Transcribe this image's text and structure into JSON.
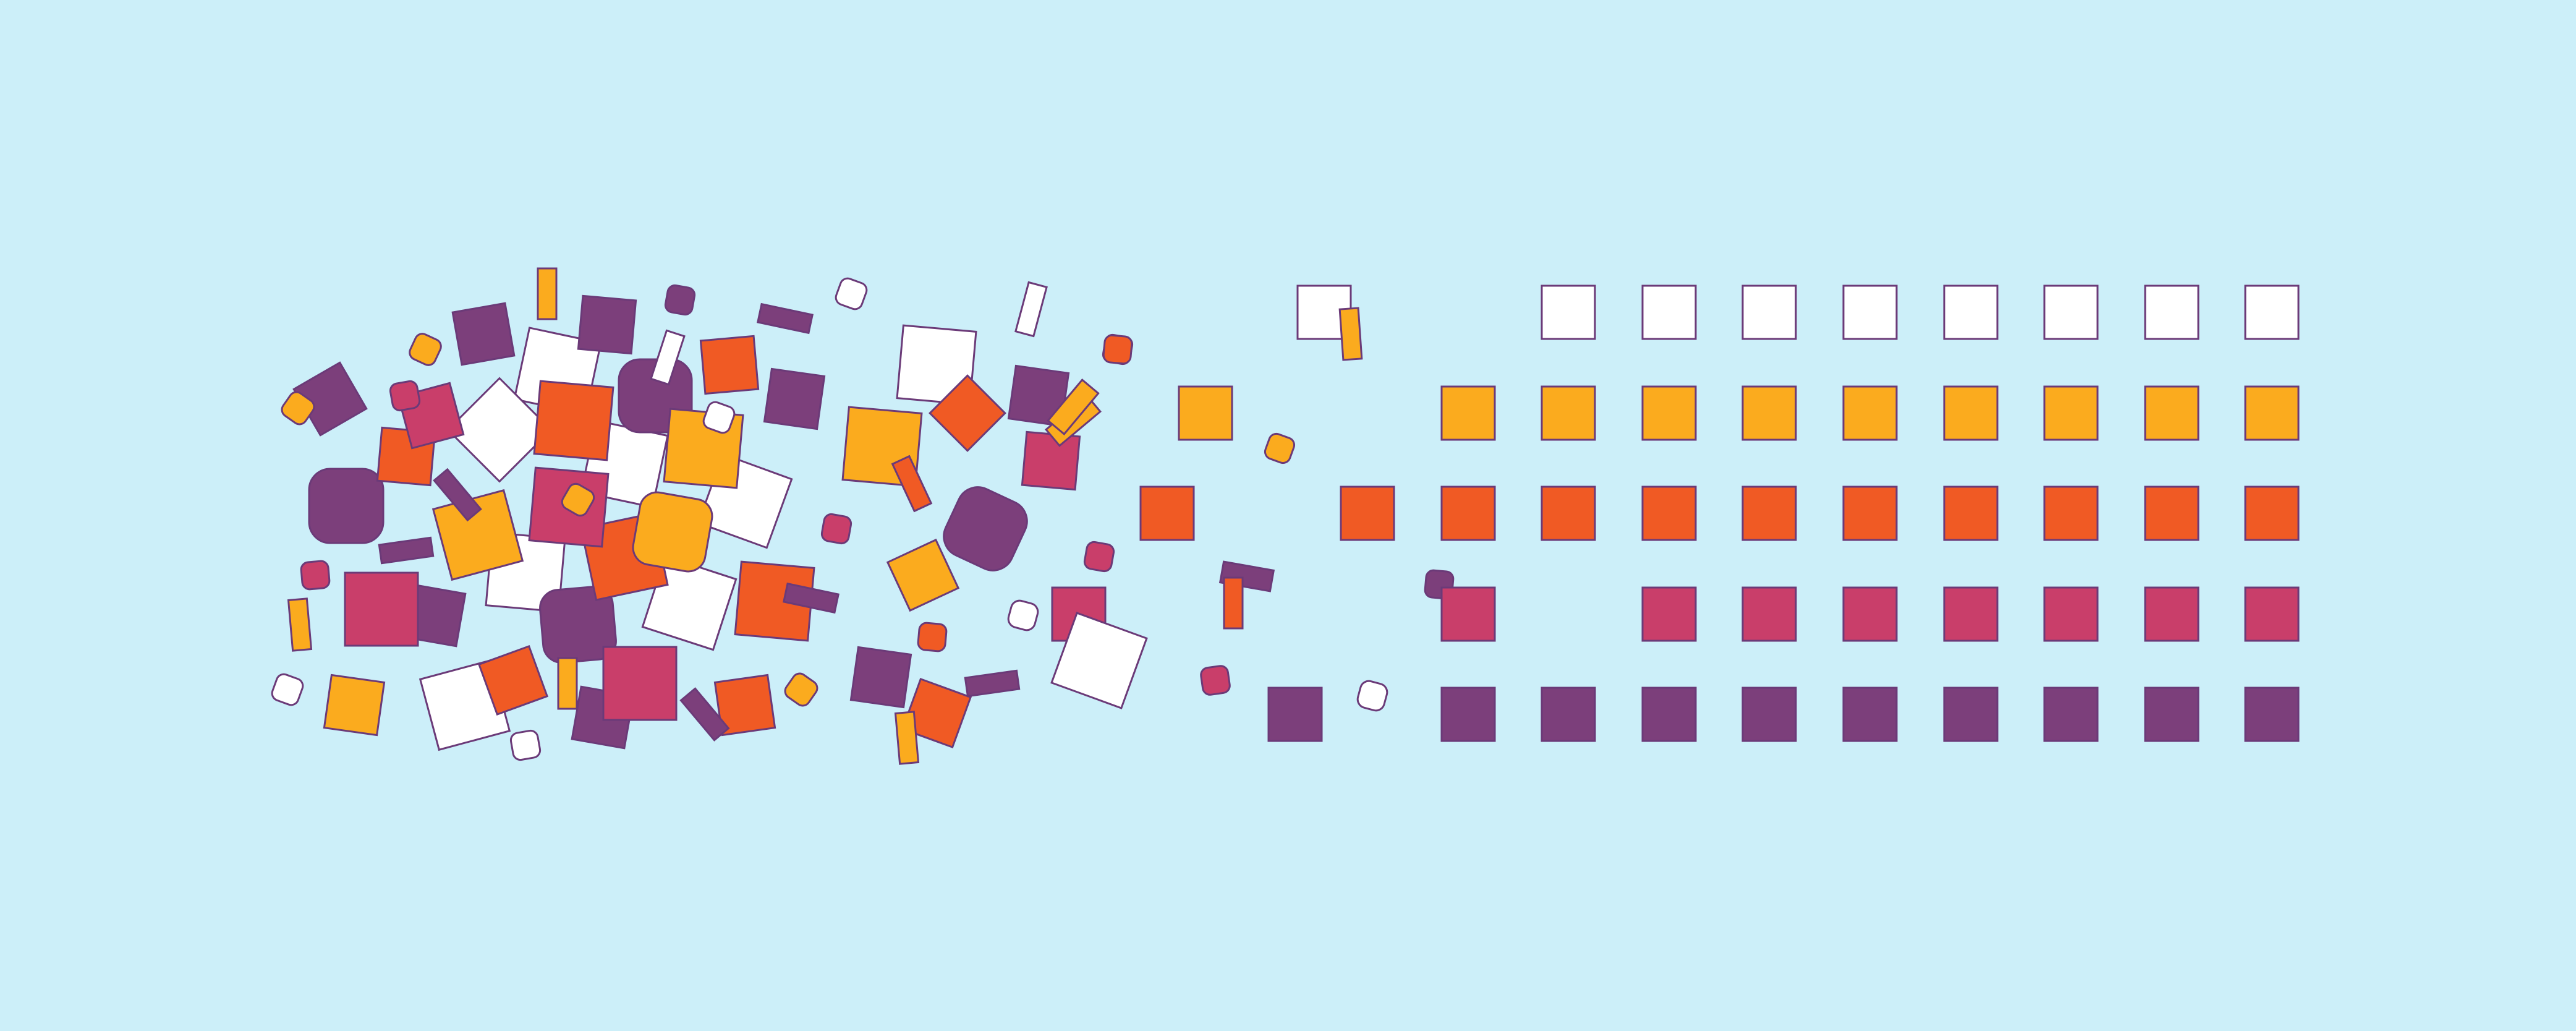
{
  "illustration": {
    "name": "scattered-squares-to-ordered-grid",
    "colors": {
      "background": "#cceff9",
      "outline": "#6b3a78",
      "white": "#ffffff",
      "yellow": "#fbab1e",
      "orange": "#f05a24",
      "pink": "#c93e6a",
      "purple": "#7c3f7b"
    },
    "grid": {
      "rows": [
        "white",
        "yellow",
        "orange",
        "pink",
        "purple"
      ],
      "columns": 9,
      "missing_cells": [
        [
          3,
          1
        ]
      ]
    }
  }
}
